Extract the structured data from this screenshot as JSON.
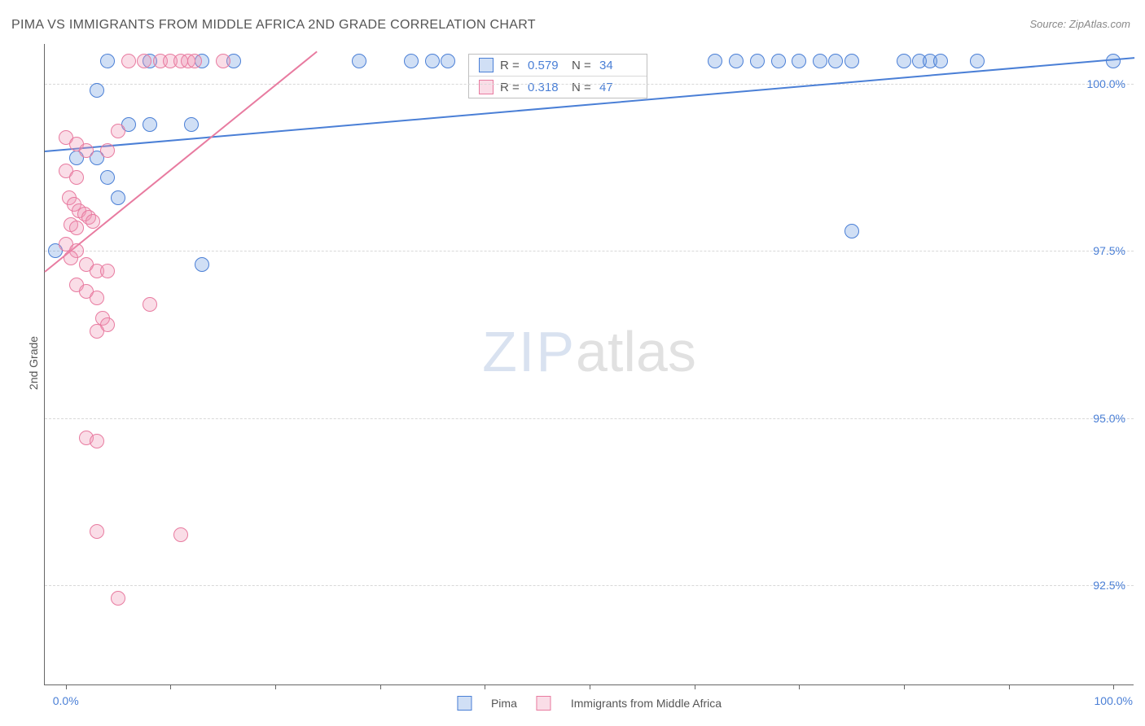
{
  "title": "PIMA VS IMMIGRANTS FROM MIDDLE AFRICA 2ND GRADE CORRELATION CHART",
  "source": "Source: ZipAtlas.com",
  "ylabel": "2nd Grade",
  "watermark": {
    "part1": "ZIP",
    "part2": "atlas"
  },
  "chart": {
    "type": "scatter",
    "background_color": "#ffffff",
    "grid_color": "#d8d8d8",
    "axis_color": "#666666",
    "tick_label_color": "#4a7fd6",
    "label_color": "#555555",
    "title_fontsize": 16,
    "label_fontsize": 14,
    "tick_fontsize": 14,
    "xlim": [
      -2,
      102
    ],
    "ylim": [
      91,
      100.6
    ],
    "y_ticks": [
      92.5,
      95.0,
      97.5,
      100.0
    ],
    "y_tick_labels": [
      "92.5%",
      "95.0%",
      "97.5%",
      "100.0%"
    ],
    "x_ticks": [
      0,
      10,
      20,
      30,
      40,
      50,
      60,
      70,
      80,
      90,
      100
    ],
    "x_tick_labels_shown": {
      "0": "0.0%",
      "100": "100.0%"
    },
    "marker_radius": 9,
    "marker_stroke_width": 1.5,
    "marker_fill_opacity": 0.32,
    "trend_line_width": 2
  },
  "series": [
    {
      "name": "Pima",
      "color_stroke": "#4a7fd6",
      "color_fill": "rgba(110,155,225,0.32)",
      "r_value": "0.579",
      "n_value": "34",
      "trend": {
        "x1": -2,
        "y1": 99.0,
        "x2": 102,
        "y2": 100.4
      },
      "points": [
        [
          4,
          100.35
        ],
        [
          8,
          100.35
        ],
        [
          13,
          100.35
        ],
        [
          16,
          100.35
        ],
        [
          28,
          100.35
        ],
        [
          33,
          100.35
        ],
        [
          35,
          100.35
        ],
        [
          36.5,
          100.35
        ],
        [
          62,
          100.35
        ],
        [
          64,
          100.35
        ],
        [
          66,
          100.35
        ],
        [
          68,
          100.35
        ],
        [
          70,
          100.35
        ],
        [
          72,
          100.35
        ],
        [
          73.5,
          100.35
        ],
        [
          75,
          100.35
        ],
        [
          80,
          100.35
        ],
        [
          81.5,
          100.35
        ],
        [
          82.5,
          100.35
        ],
        [
          83.5,
          100.35
        ],
        [
          87,
          100.35
        ],
        [
          100,
          100.35
        ],
        [
          3,
          99.9
        ],
        [
          6,
          99.4
        ],
        [
          8,
          99.4
        ],
        [
          12,
          99.4
        ],
        [
          1,
          98.9
        ],
        [
          3,
          98.9
        ],
        [
          4,
          98.6
        ],
        [
          5,
          98.3
        ],
        [
          -1,
          97.5
        ],
        [
          13,
          97.3
        ],
        [
          75,
          97.8
        ]
      ]
    },
    {
      "name": "Immigrants from Middle Africa",
      "color_stroke": "#e87ba0",
      "color_fill": "rgba(240,150,180,0.32)",
      "r_value": "0.318",
      "n_value": "47",
      "trend": {
        "x1": -2,
        "y1": 97.2,
        "x2": 24,
        "y2": 100.5
      },
      "points": [
        [
          6,
          100.35
        ],
        [
          7.5,
          100.35
        ],
        [
          9,
          100.35
        ],
        [
          10,
          100.35
        ],
        [
          11,
          100.35
        ],
        [
          11.7,
          100.35
        ],
        [
          12.3,
          100.35
        ],
        [
          15,
          100.35
        ],
        [
          0,
          99.2
        ],
        [
          1,
          99.1
        ],
        [
          2,
          99.0
        ],
        [
          0,
          98.7
        ],
        [
          1,
          98.6
        ],
        [
          5,
          99.3
        ],
        [
          4,
          99.0
        ],
        [
          0.3,
          98.3
        ],
        [
          0.8,
          98.2
        ],
        [
          1.3,
          98.1
        ],
        [
          1.8,
          98.05
        ],
        [
          2.2,
          98.0
        ],
        [
          2.6,
          97.95
        ],
        [
          0.5,
          97.9
        ],
        [
          1.0,
          97.85
        ],
        [
          0,
          97.6
        ],
        [
          1,
          97.5
        ],
        [
          0.5,
          97.4
        ],
        [
          2,
          97.3
        ],
        [
          3,
          97.2
        ],
        [
          4,
          97.2
        ],
        [
          1,
          97.0
        ],
        [
          2,
          96.9
        ],
        [
          3,
          96.8
        ],
        [
          8,
          96.7
        ],
        [
          3.5,
          96.5
        ],
        [
          4,
          96.4
        ],
        [
          3,
          96.3
        ],
        [
          2,
          94.7
        ],
        [
          3,
          94.65
        ],
        [
          3,
          93.3
        ],
        [
          11,
          93.25
        ],
        [
          5,
          92.3
        ]
      ]
    }
  ],
  "stats_box": {
    "rows": [
      {
        "swatch_stroke": "#4a7fd6",
        "swatch_fill": "rgba(110,155,225,0.32)",
        "r_label": "R =",
        "r": "0.579",
        "n_label": "N =",
        "n": "34"
      },
      {
        "swatch_stroke": "#e87ba0",
        "swatch_fill": "rgba(240,150,180,0.32)",
        "r_label": "R =",
        "r": "0.318",
        "n_label": "N =",
        "n": "47"
      }
    ]
  },
  "legend": [
    {
      "swatch_stroke": "#4a7fd6",
      "swatch_fill": "rgba(110,155,225,0.32)",
      "label": "Pima"
    },
    {
      "swatch_stroke": "#e87ba0",
      "swatch_fill": "rgba(240,150,180,0.32)",
      "label": "Immigrants from Middle Africa"
    }
  ]
}
